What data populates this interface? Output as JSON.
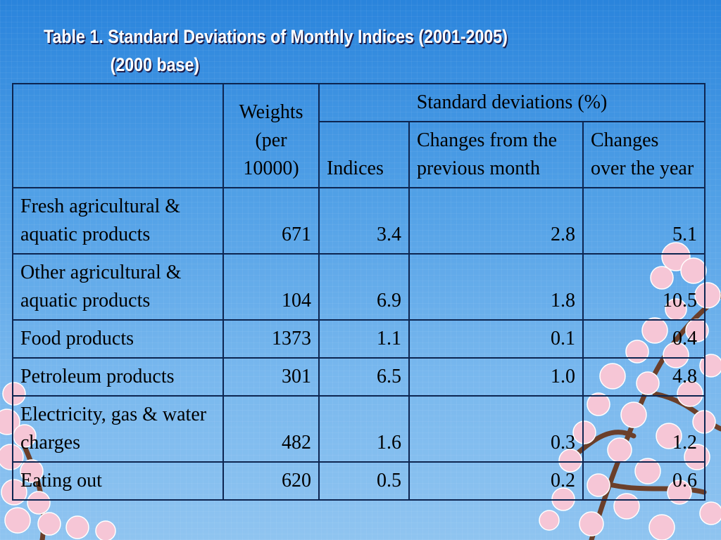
{
  "title": {
    "line1": "Table 1. Standard Deviations of Monthly Indices (2001-2005)",
    "line2": "(2000 base)"
  },
  "table": {
    "header": {
      "weights": "Weights (per 10000)",
      "group": "Standard deviations (%)",
      "indices": "Indices",
      "mom": "Changes from the previous month",
      "yoy": "Changes over the year"
    },
    "rows": [
      {
        "label": "Fresh agricultural & aquatic products",
        "weight": "671",
        "indices": "3.4",
        "mom": "2.8",
        "yoy": "5.1"
      },
      {
        "label": "Other agricultural & aquatic products",
        "weight": "104",
        "indices": "6.9",
        "mom": "1.8",
        "yoy": "10.5"
      },
      {
        "label": "Food products",
        "weight": "1373",
        "indices": "1.1",
        "mom": "0.1",
        "yoy": "0.4"
      },
      {
        "label": "Petroleum products",
        "weight": "301",
        "indices": "6.5",
        "mom": "1.0",
        "yoy": "4.8"
      },
      {
        "label": "Electricity, gas & water charges",
        "weight": "482",
        "indices": "1.6",
        "mom": "0.3",
        "yoy": "1.2"
      },
      {
        "label": "Eating out",
        "weight": "620",
        "indices": "0.5",
        "mom": "0.2",
        "yoy": "0.6"
      }
    ]
  },
  "colors": {
    "background_top": "#2a84dc",
    "background_bottom": "#8fc4f0",
    "blossom": "#f6c6d6",
    "branch": "#6b3f2a"
  }
}
